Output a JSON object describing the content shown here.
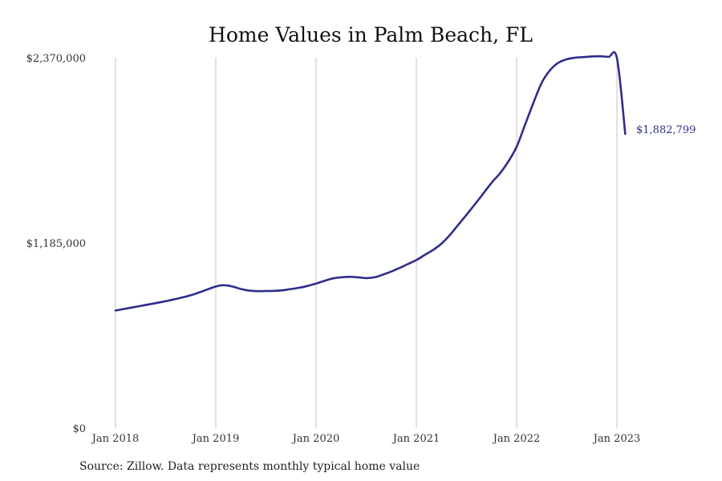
{
  "chart_data": {
    "type": "line",
    "title": "Home Values in Palm Beach, FL",
    "source_note": "Source: Zillow. Data represents monthly typical home value",
    "ylim": [
      0,
      2370000
    ],
    "yticks": [
      {
        "value": 0,
        "label": "$0"
      },
      {
        "value": 1185000,
        "label": "$1,185,000"
      },
      {
        "value": 2370000,
        "label": "$2,370,000"
      }
    ],
    "xticks": [
      "Jan 2018",
      "Jan 2019",
      "Jan 2020",
      "Jan 2021",
      "Jan 2022",
      "Jan 2023"
    ],
    "grid": "vertical",
    "line_color": "#2e2d8c",
    "end_label": "$1,882,799",
    "series": [
      {
        "x": [
          "2018-01",
          "2018-04",
          "2018-07",
          "2018-10",
          "2019-01",
          "2019-02",
          "2019-03",
          "2019-04",
          "2019-05",
          "2019-06",
          "2019-07",
          "2019-08",
          "2019-09",
          "2019-10",
          "2019-11",
          "2019-12",
          "2020-01",
          "2020-02",
          "2020-03",
          "2020-04",
          "2020-05",
          "2020-06",
          "2020-07",
          "2020-08",
          "2020-09",
          "2020-10",
          "2020-11",
          "2020-12",
          "2021-01",
          "2021-02",
          "2021-03",
          "2021-04",
          "2021-05",
          "2021-06",
          "2021-07",
          "2021-08",
          "2021-09",
          "2021-10",
          "2021-11",
          "2021-12",
          "2022-01",
          "2022-02",
          "2022-03",
          "2022-04",
          "2022-05",
          "2022-06",
          "2022-07",
          "2022-08",
          "2022-09",
          "2022-10",
          "2022-11",
          "2022-12",
          "2023-01",
          "2023-02"
        ],
        "values": [
          752000,
          782000,
          812000,
          850000,
          906000,
          914000,
          906000,
          890000,
          880000,
          876000,
          877000,
          878000,
          882000,
          890000,
          898000,
          910000,
          925000,
          942000,
          958000,
          965000,
          968000,
          965000,
          960000,
          965000,
          982000,
          1002000,
          1025000,
          1050000,
          1075000,
          1108000,
          1140000,
          1180000,
          1235000,
          1300000,
          1365000,
          1432000,
          1500000,
          1570000,
          1630000,
          1705000,
          1800000,
          1940000,
          2080000,
          2210000,
          2290000,
          2338000,
          2360000,
          2370000,
          2374000,
          2378000,
          2379000,
          2375000,
          2368000,
          1882799
        ]
      }
    ]
  }
}
